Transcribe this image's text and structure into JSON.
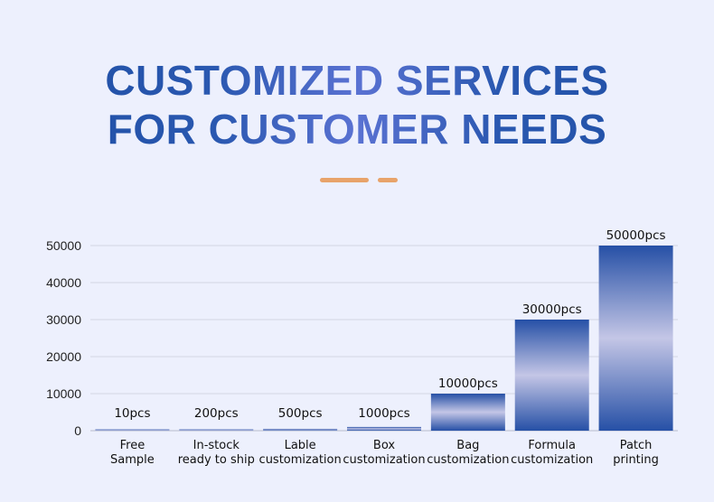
{
  "header": {
    "title_line1": "CUSTOMIZED SERVICES",
    "title_line2": "FOR CUSTOMER NEEDS"
  },
  "colors": {
    "title": "#2a55a8",
    "accent_divider": "#e8a36a",
    "bar_edge": "#2650a6",
    "bar_mid": "#c4c6e6",
    "background": "#edf0fd",
    "grid": "#d4d6e4"
  },
  "chart_data": {
    "type": "bar",
    "ylim": [
      0,
      50000
    ],
    "yticks": [
      0,
      10000,
      20000,
      30000,
      40000,
      50000
    ],
    "grid": true,
    "categories": [
      [
        "Free",
        "Sample"
      ],
      [
        "In-stock",
        "ready to ship"
      ],
      [
        "Lable",
        "customization"
      ],
      [
        "Box",
        "customization"
      ],
      [
        "Bag",
        "customization"
      ],
      [
        "Formula",
        "customization"
      ],
      [
        "Patch",
        "printing"
      ]
    ],
    "values": [
      10,
      200,
      500,
      1000,
      10000,
      30000,
      50000
    ],
    "data_labels": [
      "10pcs",
      "200pcs",
      "500pcs",
      "1000pcs",
      "10000pcs",
      "30000pcs",
      "50000pcs"
    ]
  }
}
